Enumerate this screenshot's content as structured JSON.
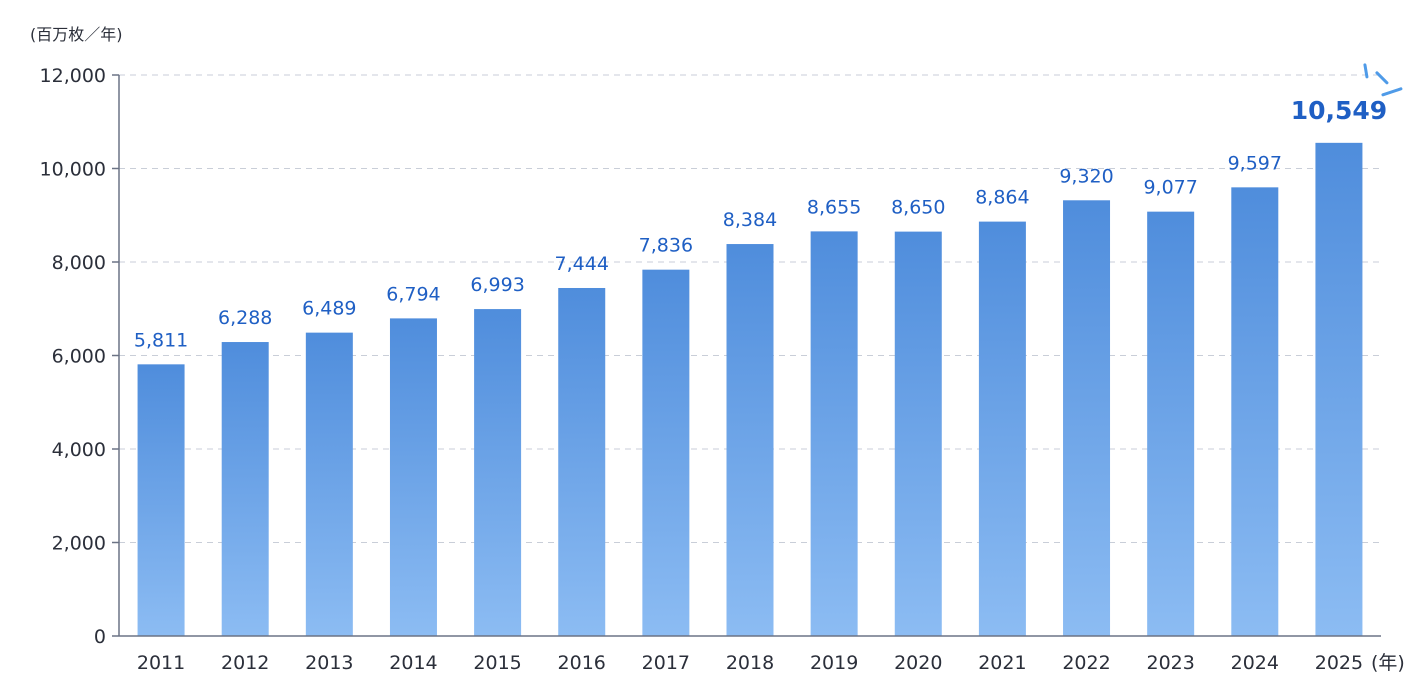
{
  "chart_data": {
    "type": "bar",
    "title": "",
    "ylabel": "(百万枚／年)",
    "xlabel": "(年)",
    "ylim": [
      0,
      12000
    ],
    "y_ticks": [
      "0",
      "2,000",
      "4,000",
      "6,000",
      "8,000",
      "10,000",
      "12,000"
    ],
    "categories": [
      "2011",
      "2012",
      "2013",
      "2014",
      "2015",
      "2016",
      "2017",
      "2018",
      "2019",
      "2020",
      "2021",
      "2022",
      "2023",
      "2024",
      "2025"
    ],
    "values": [
      5811,
      6288,
      6489,
      6794,
      6993,
      7444,
      7836,
      8384,
      8655,
      8650,
      8864,
      9320,
      9077,
      9597,
      10549
    ],
    "value_labels": [
      "5,811",
      "6,288",
      "6,489",
      "6,794",
      "6,993",
      "7,444",
      "7,836",
      "8,384",
      "8,655",
      "8,650",
      "8,864",
      "9,320",
      "9,077",
      "9,597",
      "10,549"
    ],
    "highlight_category": "2025",
    "grid": true,
    "legend": "none",
    "colors": {
      "bar_top": "#4f8ddc",
      "bar_bottom": "#8cbcf3",
      "label": "#1f5fc4",
      "axis": "#6b7385",
      "grid": "#c9ced8",
      "accent_marks": "#4f9be8"
    }
  }
}
